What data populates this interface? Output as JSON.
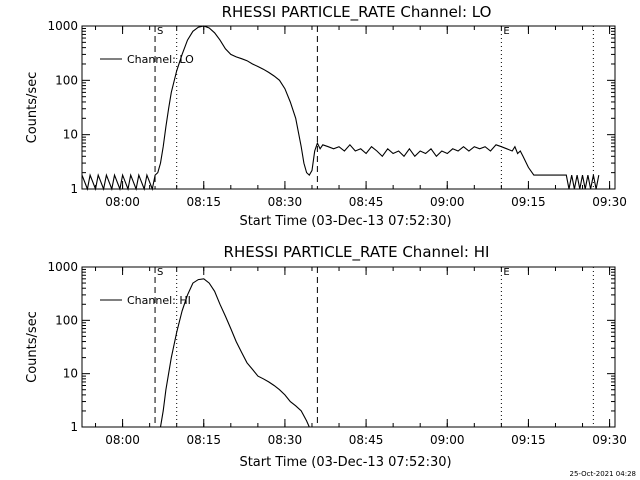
{
  "chart_data": [
    {
      "type": "line",
      "title": "RHESSI PARTICLE_RATE Channel: LO",
      "xlabel": "Start Time (03-Dec-13 07:52:30)",
      "ylabel": "Counts/sec",
      "yscale": "log",
      "ylim": [
        1,
        1000
      ],
      "xlim": [
        "07:52:30",
        "09:31:00"
      ],
      "x_ticks": [
        "08:00",
        "08:15",
        "08:30",
        "08:45",
        "09:00",
        "09:15",
        "09:30"
      ],
      "y_ticks": [
        "1",
        "10",
        "100",
        "1000"
      ],
      "legend": "top-left",
      "grid": false,
      "markers": [
        {
          "label": "S",
          "time": "08:06:00",
          "style": "dashed"
        },
        {
          "label": "",
          "time": "08:10:00",
          "style": "dotted"
        },
        {
          "label": "",
          "time": "08:36:00",
          "style": "dashed"
        },
        {
          "label": "E",
          "time": "09:10:00",
          "style": "dotted"
        },
        {
          "label": "",
          "time": "09:27:00",
          "style": "dotted"
        }
      ],
      "series": [
        {
          "name": "Channel: LO",
          "x": [
            "07:52:30",
            "07:53:30",
            "07:54:00",
            "07:55:00",
            "07:55:30",
            "07:56:30",
            "07:57:00",
            "07:58:00",
            "07:58:30",
            "07:59:30",
            "08:00:00",
            "08:01:00",
            "08:01:30",
            "08:02:30",
            "08:03:00",
            "08:04:00",
            "08:04:30",
            "08:05:30",
            "08:06:00",
            "08:06:30",
            "08:07:00",
            "08:07:30",
            "08:08:00",
            "08:08:30",
            "08:09:00",
            "08:10:00",
            "08:11:00",
            "08:12:00",
            "08:13:00",
            "08:14:00",
            "08:15:00",
            "08:16:00",
            "08:17:00",
            "08:18:00",
            "08:19:00",
            "08:20:00",
            "08:21:00",
            "08:22:00",
            "08:23:00",
            "08:24:00",
            "08:25:00",
            "08:26:00",
            "08:27:00",
            "08:28:00",
            "08:29:00",
            "08:30:00",
            "08:31:00",
            "08:32:00",
            "08:33:00",
            "08:33:30",
            "08:34:00",
            "08:34:30",
            "08:35:00",
            "08:35:30",
            "08:36:00",
            "08:36:30",
            "08:37:00",
            "08:38:00",
            "08:39:00",
            "08:40:00",
            "08:41:00",
            "08:42:00",
            "08:43:00",
            "08:44:00",
            "08:45:00",
            "08:46:00",
            "08:47:00",
            "08:48:00",
            "08:49:00",
            "08:50:00",
            "08:51:00",
            "08:52:00",
            "08:53:00",
            "08:54:00",
            "08:55:00",
            "08:56:00",
            "08:57:00",
            "08:58:00",
            "08:59:00",
            "09:00:00",
            "09:01:00",
            "09:02:00",
            "09:03:00",
            "09:04:00",
            "09:05:00",
            "09:06:00",
            "09:07:00",
            "09:08:00",
            "09:09:00",
            "09:10:00",
            "09:11:00",
            "09:12:00",
            "09:12:30",
            "09:13:00",
            "09:13:30",
            "09:14:00",
            "09:15:00",
            "09:16:00",
            "09:17:00",
            "09:18:00",
            "09:19:00",
            "09:20:00",
            "09:21:00",
            "09:22:00",
            "09:22:30",
            "09:23:00",
            "09:23:30",
            "09:24:00",
            "09:24:30",
            "09:25:00",
            "09:25:30",
            "09:26:00",
            "09:26:30",
            "09:27:00",
            "09:27:30",
            "09:28:00"
          ],
          "y": [
            1.8,
            1,
            1.8,
            1,
            1.8,
            1,
            1.8,
            1,
            1.8,
            1,
            1.8,
            1,
            1.8,
            1,
            1.8,
            1,
            1.8,
            1,
            1.8,
            2,
            3,
            6,
            14,
            30,
            60,
            150,
            300,
            550,
            800,
            950,
            1000,
            920,
            750,
            550,
            380,
            300,
            270,
            250,
            230,
            200,
            180,
            160,
            140,
            120,
            100,
            70,
            40,
            20,
            6,
            3,
            2,
            1.8,
            2.2,
            5,
            7,
            5.5,
            6.5,
            6,
            5.5,
            6,
            5,
            6.5,
            5,
            5.5,
            4.5,
            6,
            5,
            4,
            5.5,
            4.5,
            5,
            4,
            5.5,
            4,
            5,
            4.5,
            5.5,
            4,
            5,
            4.5,
            5.5,
            5,
            6,
            5,
            6,
            5.5,
            6,
            5,
            6.5,
            6,
            5.5,
            5,
            6,
            4.5,
            5,
            4,
            2.5,
            1.8,
            1.8,
            1.8,
            1.8,
            1.8,
            1.8,
            1.8,
            1,
            1.8,
            1,
            1.8,
            1,
            1.8,
            1,
            1.8,
            1,
            1.8,
            1,
            1.8
          ]
        }
      ]
    },
    {
      "type": "line",
      "title": "RHESSI PARTICLE_RATE Channel: HI",
      "xlabel": "Start Time (03-Dec-13 07:52:30)",
      "ylabel": "Counts/sec",
      "yscale": "log",
      "ylim": [
        1,
        1000
      ],
      "xlim": [
        "07:52:30",
        "09:31:00"
      ],
      "x_ticks": [
        "08:00",
        "08:15",
        "08:30",
        "08:45",
        "09:00",
        "09:15",
        "09:30"
      ],
      "y_ticks": [
        "1",
        "10",
        "100",
        "1000"
      ],
      "legend": "top-left",
      "grid": false,
      "markers": [
        {
          "label": "S",
          "time": "08:06:00",
          "style": "dashed"
        },
        {
          "label": "",
          "time": "08:10:00",
          "style": "dotted"
        },
        {
          "label": "",
          "time": "08:36:00",
          "style": "dashed"
        },
        {
          "label": "E",
          "time": "09:10:00",
          "style": "dotted"
        },
        {
          "label": "",
          "time": "09:27:00",
          "style": "dotted"
        }
      ],
      "series": [
        {
          "name": "Channel: HI",
          "x": [
            "08:07:00",
            "08:07:30",
            "08:08:00",
            "08:09:00",
            "08:10:00",
            "08:11:00",
            "08:12:00",
            "08:13:00",
            "08:14:00",
            "08:15:00",
            "08:16:00",
            "08:17:00",
            "08:18:00",
            "08:19:00",
            "08:20:00",
            "08:21:00",
            "08:22:00",
            "08:23:00",
            "08:24:00",
            "08:25:00",
            "08:26:00",
            "08:27:00",
            "08:28:00",
            "08:29:00",
            "08:30:00",
            "08:31:00",
            "08:32:00",
            "08:33:00",
            "08:34:00",
            "08:34:30"
          ],
          "y": [
            1,
            2,
            5,
            20,
            60,
            150,
            300,
            500,
            580,
            600,
            500,
            350,
            200,
            120,
            70,
            40,
            25,
            16,
            12,
            9,
            8,
            7,
            6,
            5,
            4,
            3,
            2.5,
            2,
            1.3,
            1
          ]
        }
      ]
    }
  ],
  "footer": {
    "stamp": "25-Oct-2021 04:28"
  }
}
